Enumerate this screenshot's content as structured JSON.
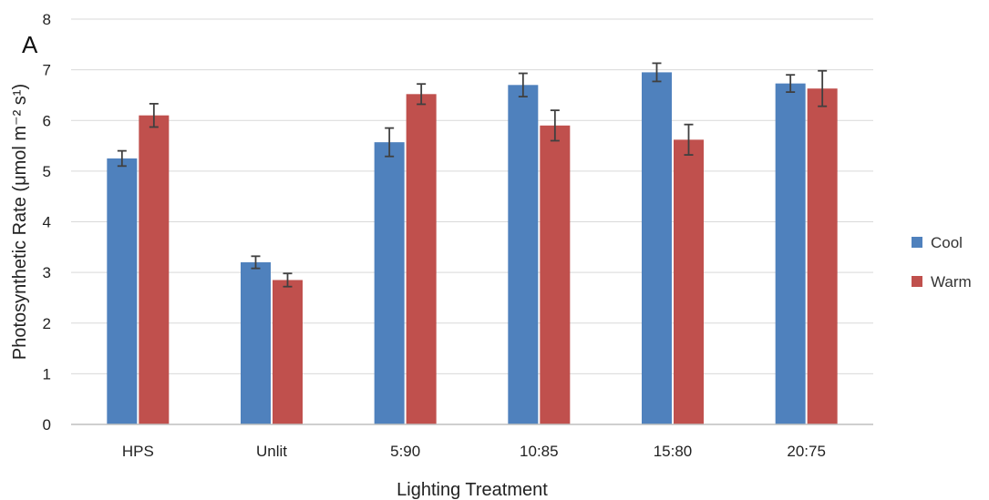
{
  "chart_data": {
    "type": "bar",
    "panel_label": "A",
    "xlabel": "Lighting Treatment",
    "ylabel": "Photosynthetic Rate (μmol m⁻² s¹)",
    "ylim": [
      0,
      8
    ],
    "yticks": [
      0,
      1,
      2,
      3,
      4,
      5,
      6,
      7,
      8
    ],
    "grid": true,
    "legend_position": "right",
    "categories": [
      "HPS",
      "Unlit",
      "5:90",
      "10:85",
      "15:80",
      "20:75"
    ],
    "series": [
      {
        "name": "Cool",
        "color": "#4f81bd",
        "values": [
          5.25,
          3.2,
          5.57,
          6.7,
          6.95,
          6.73
        ],
        "errors": [
          0.15,
          0.12,
          0.28,
          0.23,
          0.18,
          0.17
        ]
      },
      {
        "name": "Warm",
        "color": "#c0504d",
        "values": [
          6.1,
          2.85,
          6.52,
          5.9,
          5.62,
          6.63
        ],
        "errors": [
          0.23,
          0.13,
          0.2,
          0.3,
          0.3,
          0.35
        ]
      }
    ]
  }
}
